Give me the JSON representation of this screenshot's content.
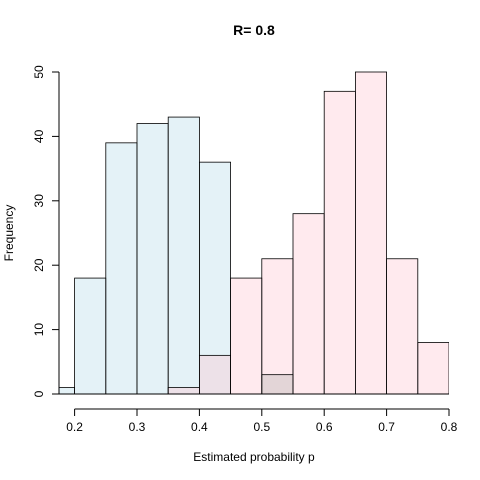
{
  "chart_data": {
    "type": "bar",
    "title": "R= 0.8",
    "xlabel": "Estimated probability p",
    "ylabel": "Frequency",
    "xlim": [
      0.175,
      0.8
    ],
    "ylim": [
      0,
      50
    ],
    "x_ticks": [
      "0.2",
      "0.3",
      "0.4",
      "0.5",
      "0.6",
      "0.7",
      "0.8"
    ],
    "y_ticks": [
      "0",
      "10",
      "20",
      "30",
      "40",
      "50"
    ],
    "bin_width": 0.05,
    "grid": false,
    "series": [
      {
        "color": "#add8e6",
        "bins": [
          {
            "start": 0.15,
            "count": 1
          },
          {
            "start": 0.2,
            "count": 18
          },
          {
            "start": 0.25,
            "count": 39
          },
          {
            "start": 0.3,
            "count": 42
          },
          {
            "start": 0.35,
            "count": 43
          },
          {
            "start": 0.4,
            "count": 36
          }
        ]
      },
      {
        "color": "#ffc0cb",
        "bins": [
          {
            "start": 0.35,
            "count": 1
          },
          {
            "start": 0.4,
            "count": 6
          },
          {
            "start": 0.45,
            "count": 18
          },
          {
            "start": 0.5,
            "count": 21
          },
          {
            "start": 0.55,
            "count": 28
          },
          {
            "start": 0.6,
            "count": 47
          },
          {
            "start": 0.65,
            "count": 50
          },
          {
            "start": 0.7,
            "count": 21
          },
          {
            "start": 0.75,
            "count": 8
          }
        ]
      },
      {
        "color": "#a9a9a9",
        "bins": [
          {
            "start": 0.5,
            "count": 3
          }
        ]
      }
    ]
  }
}
